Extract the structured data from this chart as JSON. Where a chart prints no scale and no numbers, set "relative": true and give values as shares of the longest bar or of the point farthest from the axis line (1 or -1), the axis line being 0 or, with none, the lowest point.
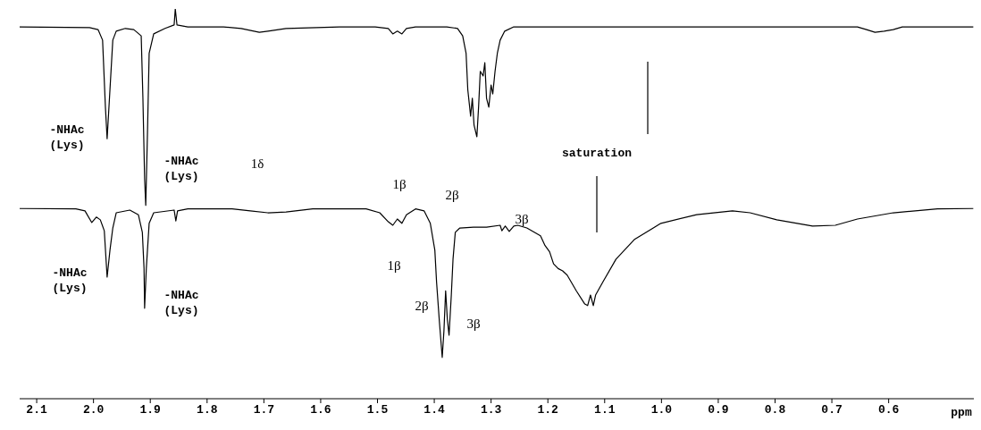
{
  "chart_data": {
    "type": "line",
    "relative": true,
    "xlabel": "ppm",
    "xlim": [
      2.13,
      0.45
    ],
    "xticks": [
      2.1,
      {
        "value": 2,
        "label": "2.0"
      },
      1.9,
      1.8,
      1.7,
      1.6,
      1.5,
      1.4,
      1.3,
      1.2,
      1.1,
      {
        "value": 1,
        "label": "1.0"
      },
      0.9,
      0.8,
      0.7,
      0.6
    ],
    "series": [
      {
        "color": "#000000",
        "x": [
          2.13,
          2.007,
          1.992,
          1.984,
          1.979,
          1.976,
          1.971,
          1.966,
          1.96,
          1.944,
          1.929,
          1.916,
          1.913,
          1.91,
          1.908,
          1.905,
          1.902,
          1.894,
          1.874,
          1.858,
          1.856,
          1.853,
          1.834,
          1.771,
          1.74,
          1.708,
          1.693,
          1.661,
          1.567,
          1.504,
          1.481,
          1.473,
          1.465,
          1.457,
          1.449,
          1.433,
          1.378,
          1.359,
          1.35,
          1.344,
          1.341,
          1.336,
          1.333,
          1.33,
          1.325,
          1.322,
          1.319,
          1.314,
          1.311,
          1.308,
          1.304,
          1.3,
          1.297,
          1.293,
          1.289,
          1.284,
          1.276,
          1.26,
          0.655,
          0.639,
          0.624,
          0.608,
          0.592,
          0.576,
          0.451
        ],
        "values": [
          0.954,
          0.952,
          0.947,
          0.92,
          0.748,
          0.667,
          0.793,
          0.92,
          0.943,
          0.95,
          0.947,
          0.931,
          0.771,
          0.564,
          0.496,
          0.679,
          0.886,
          0.936,
          0.95,
          0.959,
          1.0,
          0.959,
          0.954,
          0.954,
          0.95,
          0.94,
          0.943,
          0.95,
          0.954,
          0.954,
          0.95,
          0.936,
          0.943,
          0.936,
          0.95,
          0.954,
          0.954,
          0.95,
          0.931,
          0.886,
          0.793,
          0.725,
          0.771,
          0.702,
          0.672,
          0.748,
          0.84,
          0.828,
          0.862,
          0.771,
          0.748,
          0.805,
          0.782,
          0.84,
          0.886,
          0.92,
          0.943,
          0.954,
          0.954,
          0.947,
          0.94,
          0.943,
          0.947,
          0.954,
          0.954
        ]
      },
      {
        "color": "#000000",
        "x": [
          2.13,
          2.031,
          2.015,
          2.003,
          1.995,
          1.988,
          1.981,
          1.976,
          1.971,
          1.966,
          1.96,
          1.936,
          1.921,
          1.914,
          1.911,
          1.91,
          1.907,
          1.902,
          1.894,
          1.858,
          1.855,
          1.852,
          1.834,
          1.756,
          1.724,
          1.693,
          1.661,
          1.614,
          1.52,
          1.496,
          1.481,
          1.473,
          1.465,
          1.457,
          1.449,
          1.433,
          1.418,
          1.407,
          1.399,
          1.396,
          1.391,
          1.386,
          1.383,
          1.38,
          1.377,
          1.374,
          1.37,
          1.367,
          1.363,
          1.355,
          1.331,
          1.308,
          1.284,
          1.281,
          1.275,
          1.268,
          1.26,
          1.253,
          1.237,
          1.213,
          1.205,
          1.197,
          1.19,
          1.182,
          1.174,
          1.166,
          1.15,
          1.135,
          1.13,
          1.125,
          1.12,
          1.116,
          1.103,
          1.08,
          1.048,
          1.001,
          0.938,
          0.875,
          0.844,
          0.797,
          0.734,
          0.694,
          0.655,
          0.592,
          0.514,
          0.451
        ],
        "values": [
          0.488,
          0.487,
          0.482,
          0.452,
          0.466,
          0.459,
          0.431,
          0.312,
          0.381,
          0.438,
          0.477,
          0.484,
          0.472,
          0.427,
          0.334,
          0.232,
          0.334,
          0.45,
          0.477,
          0.484,
          0.456,
          0.482,
          0.487,
          0.487,
          0.482,
          0.477,
          0.479,
          0.487,
          0.487,
          0.477,
          0.454,
          0.445,
          0.461,
          0.45,
          0.472,
          0.487,
          0.482,
          0.45,
          0.381,
          0.3,
          0.198,
          0.106,
          0.174,
          0.277,
          0.204,
          0.163,
          0.266,
          0.358,
          0.427,
          0.438,
          0.44,
          0.44,
          0.445,
          0.431,
          0.443,
          0.429,
          0.443,
          0.445,
          0.438,
          0.418,
          0.393,
          0.377,
          0.346,
          0.334,
          0.328,
          0.317,
          0.277,
          0.243,
          0.239,
          0.266,
          0.239,
          0.266,
          0.3,
          0.358,
          0.408,
          0.45,
          0.472,
          0.482,
          0.477,
          0.459,
          0.443,
          0.445,
          0.461,
          0.477,
          0.487,
          0.488
        ]
      }
    ],
    "annotations": [
      "-NHAc\n(Lys)",
      "-NHAc\n(Lys)",
      "1δ",
      "1β",
      "2β",
      "3β",
      "saturation",
      "-NHAc\n(Lys)",
      "-NHAc\n(Lys)",
      "1β",
      "2β",
      "3β"
    ]
  }
}
